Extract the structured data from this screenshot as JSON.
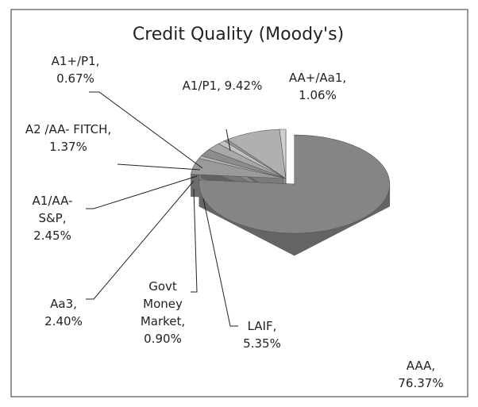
{
  "chart_data": {
    "type": "pie3d",
    "title": "Credit Quality (Moody's)",
    "categories": [
      "AAA,",
      "LAIF,",
      "Govt Money Market,",
      "Aa3,",
      "A1/AA- S&P,",
      "A2 /AA- FITCH,",
      "A1+/P1,",
      "A1/P1,",
      "AA+/Aa1,"
    ],
    "values": [
      76.37,
      5.35,
      0.9,
      2.4,
      2.45,
      1.37,
      0.67,
      9.42,
      1.06
    ],
    "value_labels": [
      "76.37%",
      "5.35%",
      "0.90%",
      "2.40%",
      "2.45%",
      "1.37%",
      "0.67%",
      "9.42%",
      "1.06%"
    ],
    "colors": [
      "#858585",
      "#9a9a9a",
      "#b5b5b5",
      "#8c8c8c",
      "#a8a8a8",
      "#c2c2c2",
      "#999999",
      "#b0b0b0",
      "#cfcfcf"
    ]
  }
}
